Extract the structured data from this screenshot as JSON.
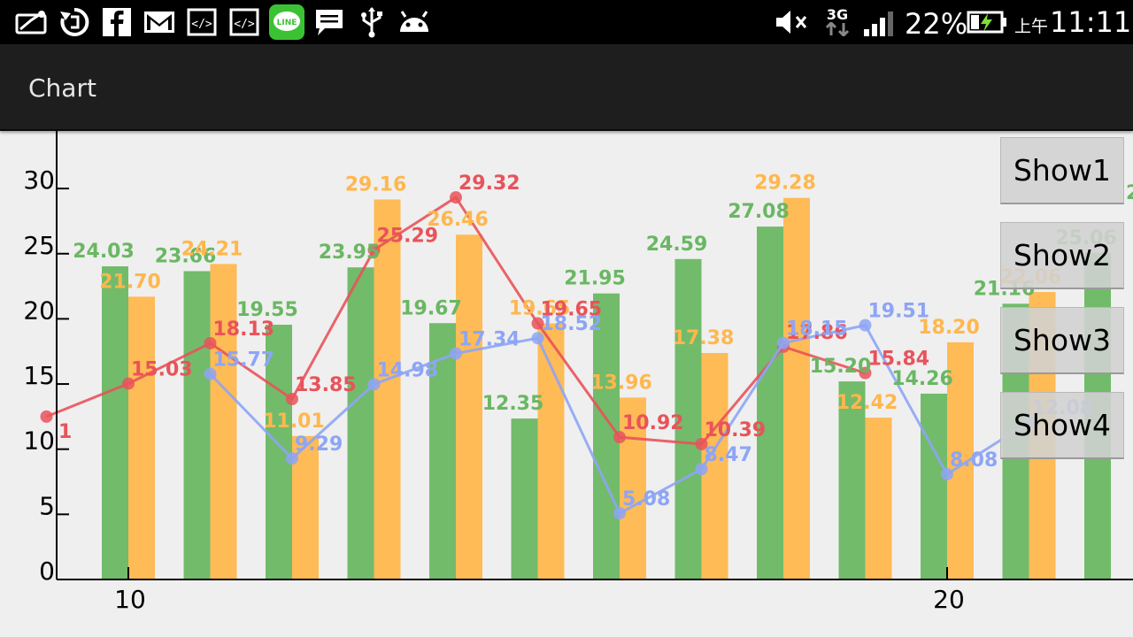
{
  "status_bar": {
    "left_icons": [
      "notification-envelope-icon",
      "sync-icon",
      "facebook-icon",
      "gmail-icon",
      "code-icon",
      "code-icon",
      "line-app-icon",
      "message-icon",
      "usb-icon",
      "android-icon"
    ],
    "network_type": "3G",
    "battery_percent": "22%",
    "clock_ampm": "上午",
    "clock_time": "11:11"
  },
  "action_bar": {
    "title": "Chart"
  },
  "buttons": [
    "Show1",
    "Show2",
    "Show3",
    "Show4"
  ],
  "colors": {
    "green": "#6ab763",
    "orange": "#ffb74d",
    "red": "#e8535a",
    "blue": "#8da5f5"
  },
  "chart_data": {
    "type": "bar",
    "x": [
      9,
      10,
      11,
      12,
      13,
      14,
      15,
      16,
      17,
      18,
      19,
      20,
      21,
      22
    ],
    "x_ticks": [
      "10",
      "20"
    ],
    "y_ticks": [
      "0",
      "5",
      "10",
      "15",
      "20",
      "25",
      "30"
    ],
    "ylim": [
      0,
      35
    ],
    "grid": false,
    "series": [
      {
        "kind": "bar",
        "color": "green",
        "values": [
          null,
          24.03,
          23.66,
          19.55,
          23.95,
          19.67,
          12.35,
          21.95,
          24.59,
          27.08,
          15.2,
          14.26,
          21.16,
          25.06
        ]
      },
      {
        "kind": "bar",
        "color": "orange",
        "values": [
          null,
          21.7,
          24.21,
          11.01,
          29.16,
          26.46,
          19.65,
          13.96,
          17.38,
          29.28,
          12.42,
          18.2,
          22.06,
          null
        ]
      },
      {
        "kind": "line",
        "color": "red",
        "values": [
          12.5,
          15.03,
          18.13,
          13.85,
          25.29,
          29.32,
          19.65,
          10.92,
          10.39,
          17.86,
          15.84,
          null,
          null,
          null
        ]
      },
      {
        "kind": "line",
        "color": "blue",
        "values": [
          null,
          null,
          15.77,
          9.29,
          14.98,
          17.34,
          18.52,
          5.08,
          8.47,
          18.15,
          19.51,
          8.08,
          12.08,
          null
        ]
      }
    ],
    "edge_labels": [
      {
        "text": "1",
        "color": "red"
      },
      {
        "text": "2",
        "color": "green"
      }
    ]
  }
}
